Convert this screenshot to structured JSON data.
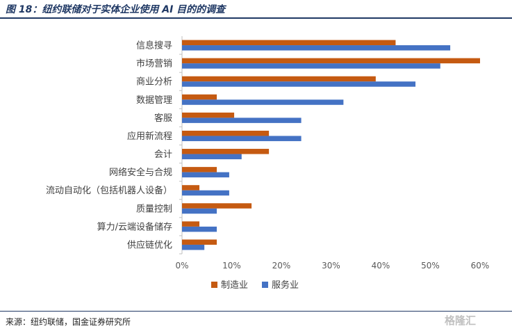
{
  "header": {
    "title": "图 18：纽约联储对于实体企业使用 AI 目的的调查"
  },
  "footer": {
    "source": "来源：纽约联储，国金证券研究所",
    "watermark": "格隆汇"
  },
  "colors": {
    "manufacturing": "#c55a11",
    "services": "#4472c4",
    "title": "#1f3864"
  },
  "chart_data": {
    "type": "bar",
    "orientation": "horizontal",
    "categories": [
      "信息搜寻",
      "市场营销",
      "商业分析",
      "数据管理",
      "客服",
      "应用新流程",
      "会计",
      "网络安全与合规",
      "流动自动化（包括机器人设备）",
      "质量控制",
      "算力/云端设备储存",
      "供应链优化"
    ],
    "series": [
      {
        "name": "制造业",
        "values": [
          43,
          60,
          39,
          7,
          10.5,
          17.5,
          17.5,
          7,
          3.5,
          14,
          3.5,
          7
        ]
      },
      {
        "name": "服务业",
        "values": [
          54,
          52,
          47,
          32.5,
          24,
          24,
          12,
          9.5,
          9.5,
          7,
          7,
          4.5
        ]
      }
    ],
    "xlim": [
      0,
      60
    ],
    "xticks": [
      "0%",
      "10%",
      "20%",
      "30%",
      "40%",
      "50%",
      "60%"
    ],
    "legend": "bottom",
    "grid": false
  }
}
